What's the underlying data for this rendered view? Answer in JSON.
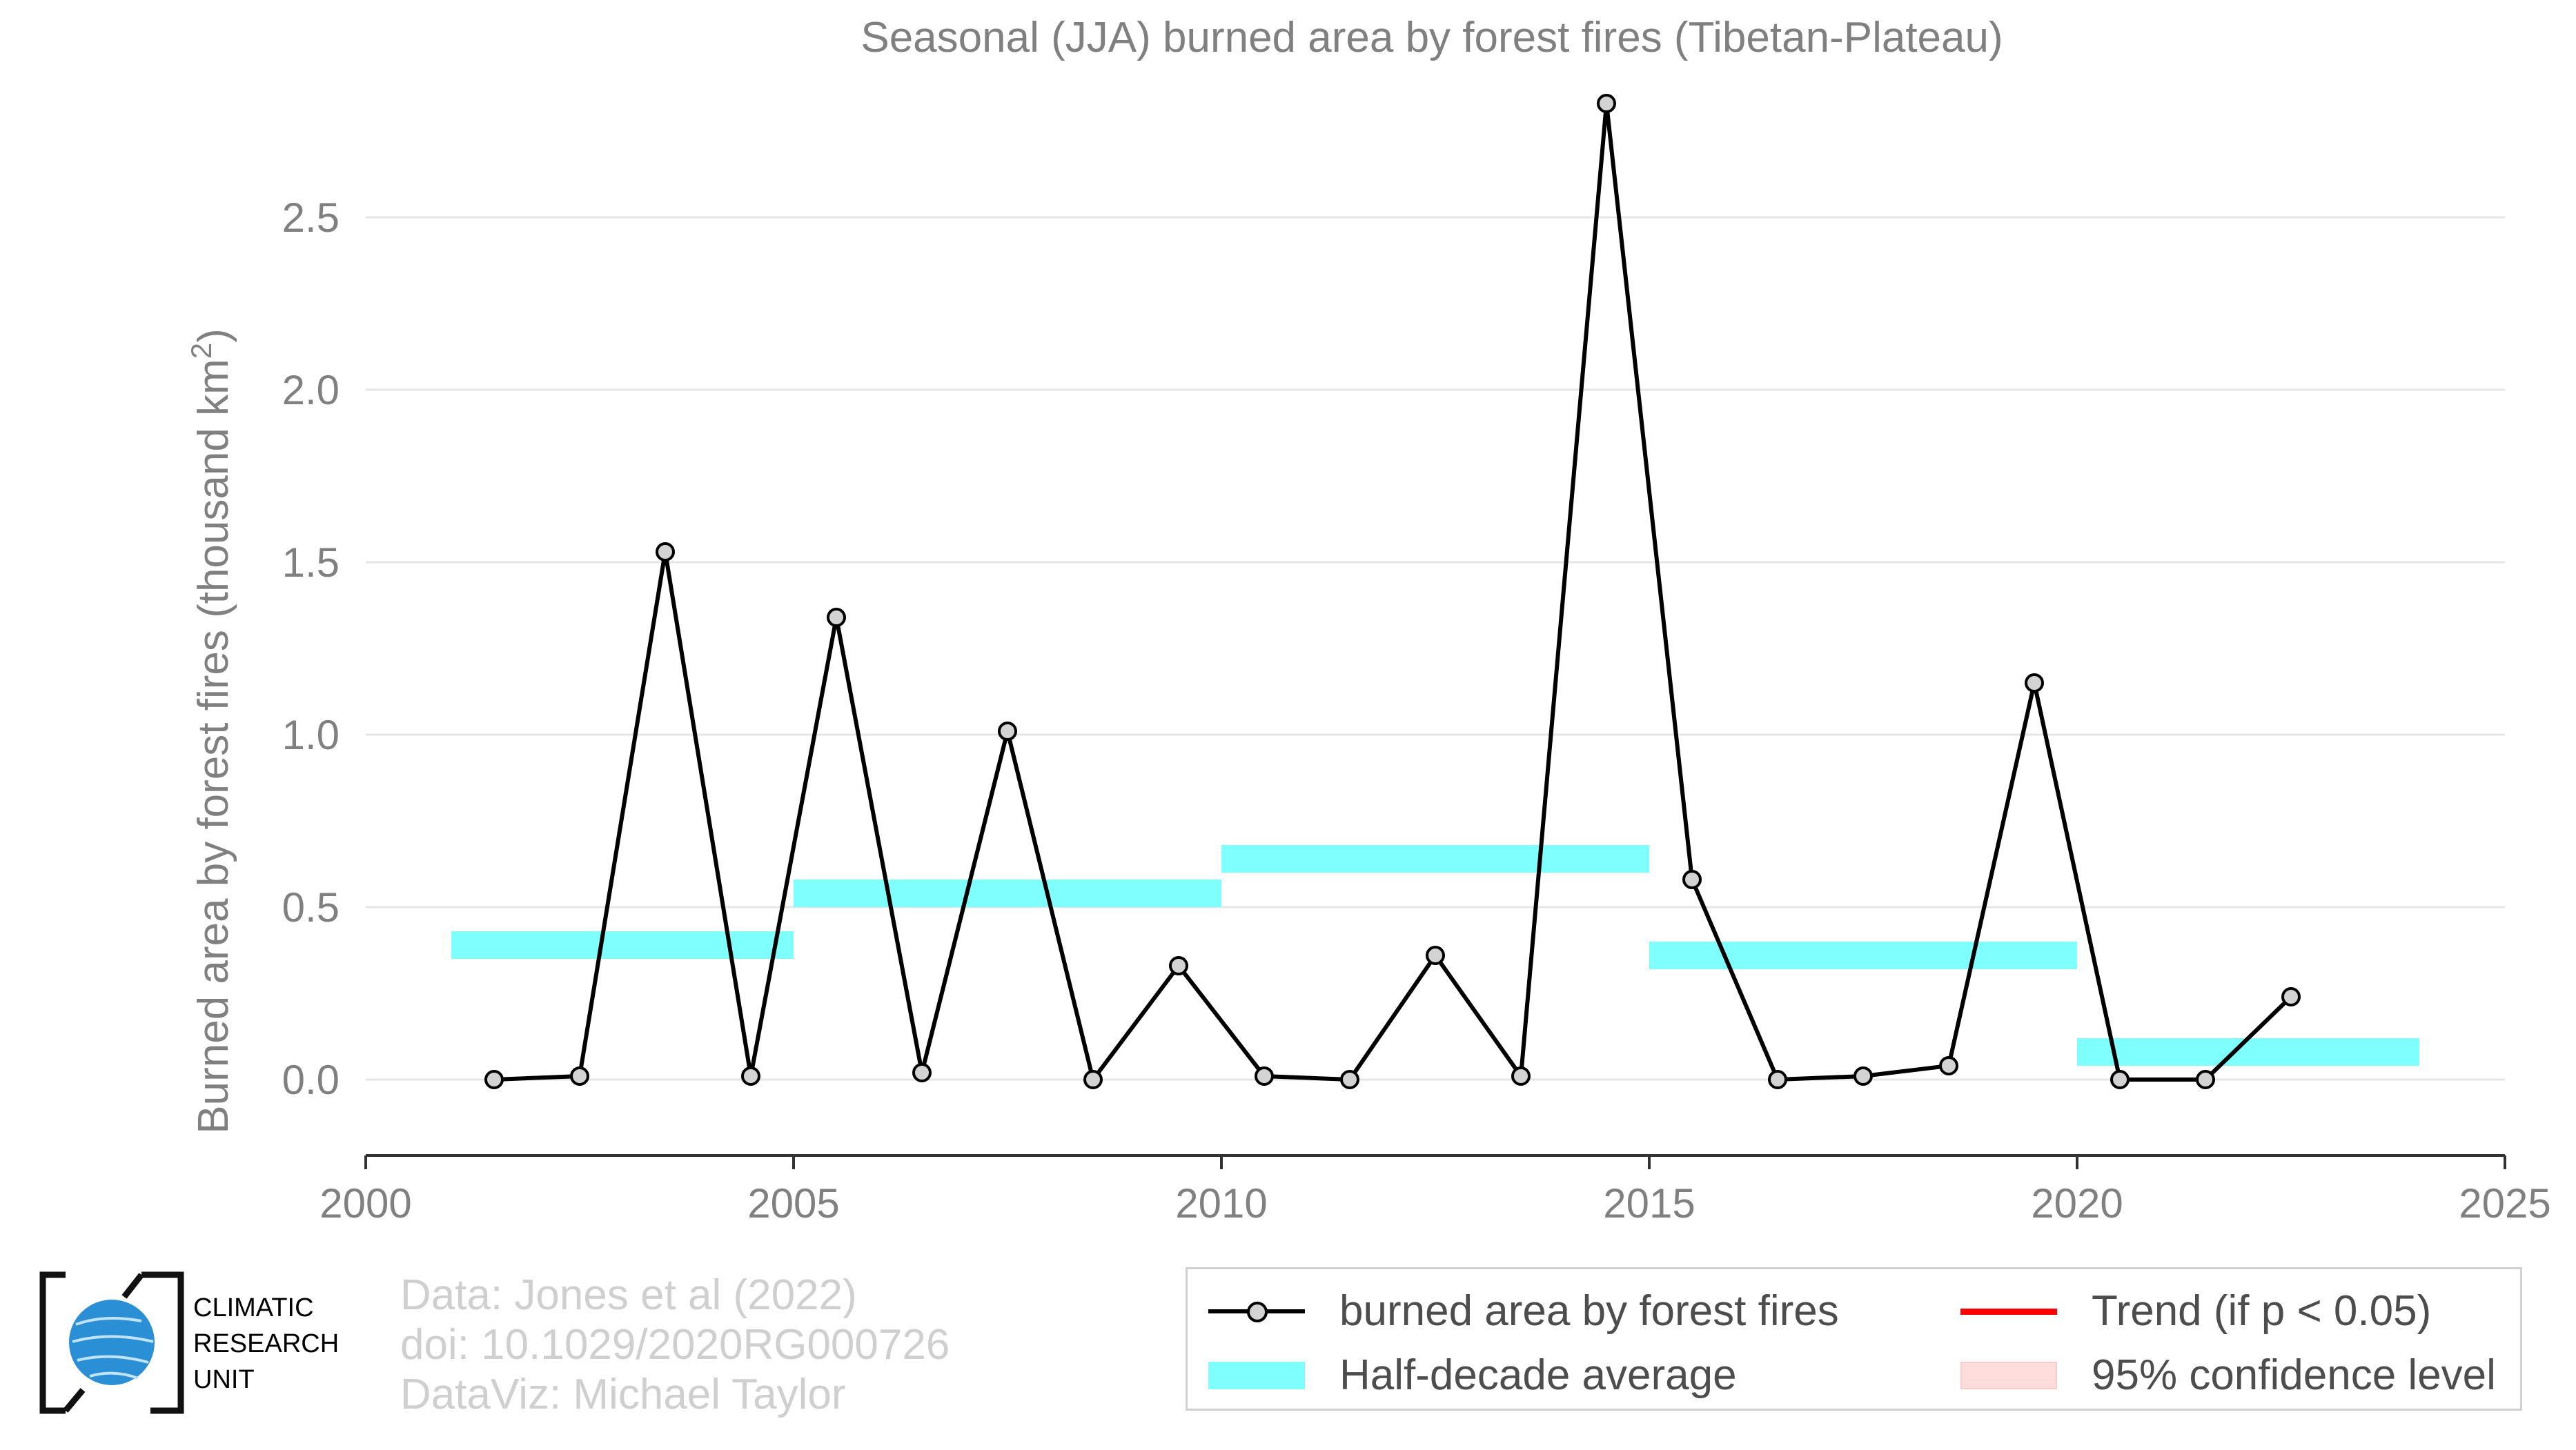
{
  "chart_data": {
    "type": "line",
    "title": "Seasonal (JJA) burned area by forest fires (Tibetan-Plateau)",
    "xlabel": "",
    "ylabel": "Burned area by forest fires (thousand km",
    "ylabel_sup": "2",
    "ylabel_close": ")",
    "xlim": [
      2000,
      2025
    ],
    "ylim": [
      -0.22,
      2.9
    ],
    "xticks": [
      2000,
      2005,
      2010,
      2015,
      2020,
      2025
    ],
    "yticks": [
      0.0,
      0.5,
      1.0,
      1.5,
      2.0,
      2.5
    ],
    "ytick_labels": [
      "0.0",
      "0.5",
      "1.0",
      "1.5",
      "2.0",
      "2.5"
    ],
    "grid": "horizontal",
    "series": [
      {
        "name": "burned area by forest fires",
        "color": "#000000",
        "marker_fill": "#d3d3d3",
        "x": [
          2001.5,
          2002.5,
          2003.5,
          2004.5,
          2005.5,
          2006.5,
          2007.5,
          2008.5,
          2009.5,
          2010.5,
          2011.5,
          2012.5,
          2013.5,
          2014.5,
          2015.5,
          2016.5,
          2017.5,
          2018.5,
          2019.5,
          2020.5,
          2021.5,
          2022.5
        ],
        "values": [
          0.0,
          0.01,
          1.53,
          0.01,
          1.34,
          0.02,
          1.01,
          0.0,
          0.33,
          0.01,
          0.0,
          0.36,
          0.01,
          2.83,
          0.58,
          0.0,
          0.01,
          0.04,
          1.15,
          0.0,
          0.0,
          0.24
        ]
      }
    ],
    "half_decade_average": {
      "name": "Half-decade average",
      "color": "#80ffff",
      "segments": [
        {
          "x0": 2001,
          "x1": 2005,
          "value": 0.39
        },
        {
          "x0": 2005,
          "x1": 2010,
          "value": 0.54
        },
        {
          "x0": 2010,
          "x1": 2015,
          "value": 0.64
        },
        {
          "x0": 2015,
          "x1": 2020,
          "value": 0.36
        },
        {
          "x0": 2020,
          "x1": 2024,
          "value": 0.08
        }
      ]
    },
    "legend": {
      "placement": "bottom-right",
      "entries": [
        {
          "label": "burned area by forest fires",
          "kind": "line-marker",
          "color": "#000000"
        },
        {
          "label": "Trend (if p < 0.05)",
          "kind": "line",
          "color": "#ff0000"
        },
        {
          "label": "Half-decade average",
          "kind": "band",
          "color": "#80ffff"
        },
        {
          "label": "95% confidence level",
          "kind": "band",
          "color": "#ffdddd"
        }
      ]
    }
  },
  "logo": {
    "lines": [
      "CLIMATIC",
      "RESEARCH",
      "UNIT"
    ],
    "globe_color": "#2a8fd4"
  },
  "credits": {
    "line1": "Data: Jones et al (2022)",
    "line2": "doi: 10.1029/2020RG000726",
    "line3": "DataViz: Michael Taylor"
  },
  "colors": {
    "text": "#808080",
    "grid": "#e6e6e6",
    "axis": "#333333"
  }
}
